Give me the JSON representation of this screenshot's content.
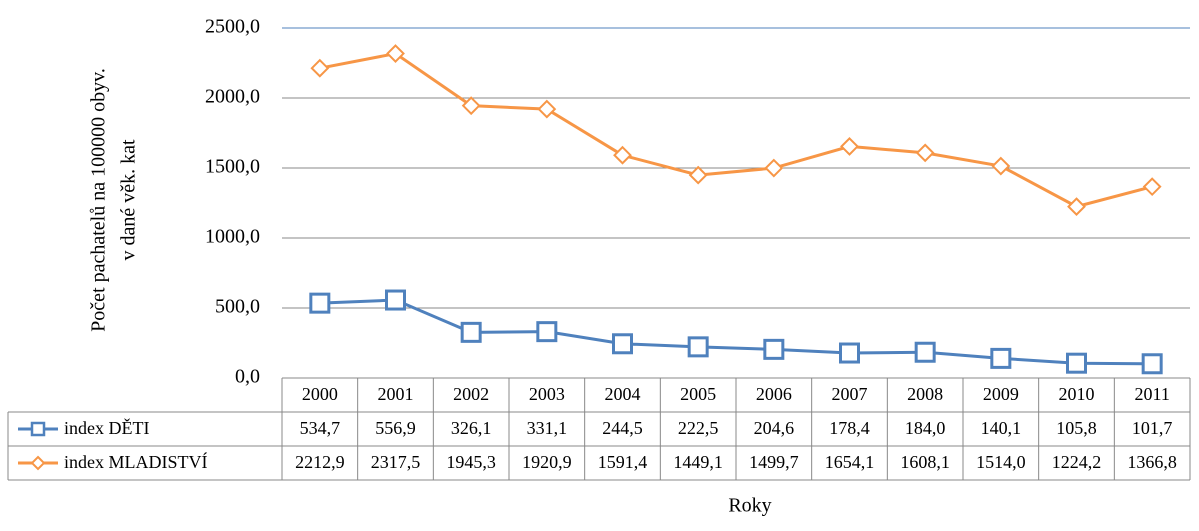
{
  "chart_data": {
    "type": "line",
    "ylabel": [
      "Počet pachatelů na 100000 obyv.",
      "v dané věk. kat"
    ],
    "xlabel": "Roky",
    "categories": [
      "2000",
      "2001",
      "2002",
      "2003",
      "2004",
      "2005",
      "2006",
      "2007",
      "2008",
      "2009",
      "2010",
      "2011"
    ],
    "series": [
      {
        "name": "index DĚTI",
        "color": "#4f81bd",
        "marker": "square",
        "values": [
          534.7,
          556.9,
          326.1,
          331.1,
          244.5,
          222.5,
          204.6,
          178.4,
          184.0,
          140.1,
          105.8,
          101.7
        ],
        "value_labels": [
          "534,7",
          "556,9",
          "326,1",
          "331,1",
          "244,5",
          "222,5",
          "204,6",
          "178,4",
          "184,0",
          "140,1",
          "105,8",
          "101,7"
        ]
      },
      {
        "name": "index MLADISTVÍ",
        "color": "#f79646",
        "marker": "diamond",
        "values": [
          2212.9,
          2317.5,
          1945.3,
          1920.9,
          1591.4,
          1449.1,
          1499.7,
          1654.1,
          1608.1,
          1514.0,
          1224.2,
          1366.8
        ],
        "value_labels": [
          "2212,9",
          "2317,5",
          "1945,3",
          "1920,9",
          "1591,4",
          "1449,1",
          "1499,7",
          "1654,1",
          "1608,1",
          "1514,0",
          "1224,2",
          "1366,8"
        ]
      }
    ],
    "ylim": [
      0,
      2500
    ],
    "yticks": [
      {
        "value": 0,
        "label": "0,0"
      },
      {
        "value": 500,
        "label": "500,0"
      },
      {
        "value": 1000,
        "label": "1000,0"
      },
      {
        "value": 1500,
        "label": "1500,0"
      },
      {
        "value": 2000,
        "label": "2000,0"
      },
      {
        "value": 2500,
        "label": "2500,0"
      }
    ],
    "grid": true
  }
}
